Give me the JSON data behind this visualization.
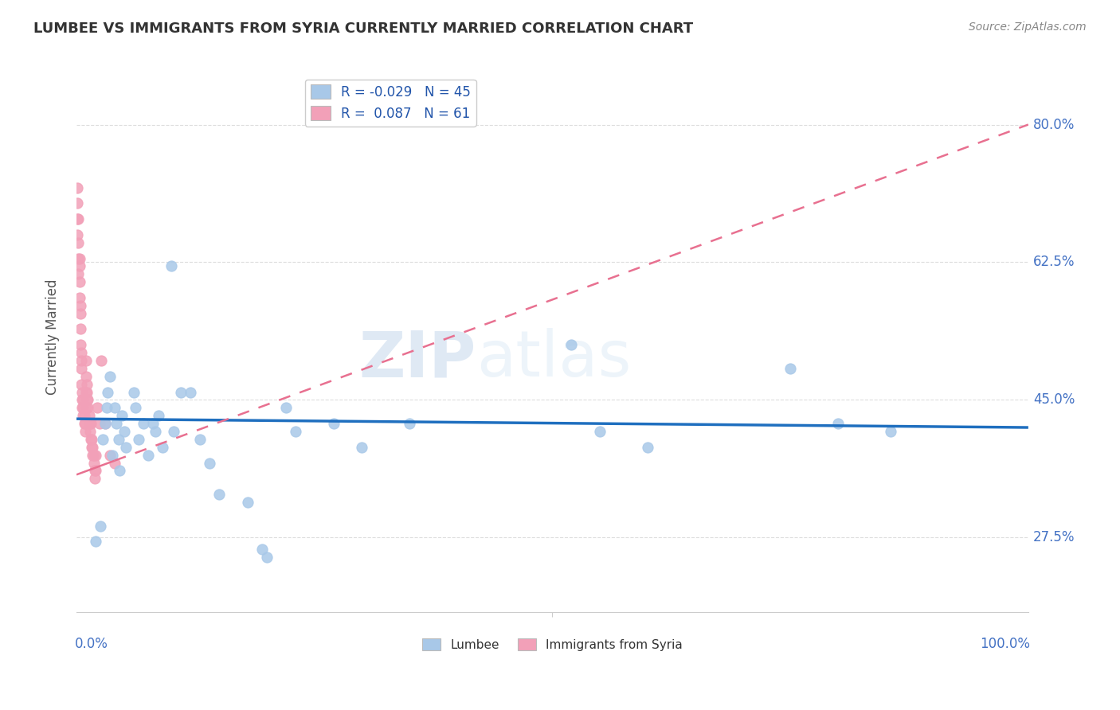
{
  "title": "LUMBEE VS IMMIGRANTS FROM SYRIA CURRENTLY MARRIED CORRELATION CHART",
  "source": "Source: ZipAtlas.com",
  "ylabel": "Currently Married",
  "legend_label1": "Lumbee",
  "legend_label2": "Immigrants from Syria",
  "r1": -0.029,
  "n1": 45,
  "r2": 0.087,
  "n2": 61,
  "yticks": [
    0.275,
    0.45,
    0.625,
    0.8
  ],
  "ytick_labels": [
    "27.5%",
    "45.0%",
    "62.5%",
    "80.0%"
  ],
  "color_blue": "#a8c8e8",
  "color_pink": "#f2a0b8",
  "line_blue": "#1f6fbf",
  "line_pink": "#e87090",
  "watermark_zip": "ZIP",
  "watermark_atlas": "atlas",
  "xmin": 0.0,
  "xmax": 1.0,
  "ymin": 0.18,
  "ymax": 0.88,
  "lumbee_x": [
    0.02,
    0.025,
    0.028,
    0.03,
    0.032,
    0.033,
    0.035,
    0.038,
    0.04,
    0.042,
    0.044,
    0.045,
    0.048,
    0.05,
    0.052,
    0.06,
    0.062,
    0.065,
    0.07,
    0.075,
    0.08,
    0.083,
    0.086,
    0.09,
    0.1,
    0.102,
    0.11,
    0.12,
    0.13,
    0.14,
    0.15,
    0.18,
    0.195,
    0.2,
    0.22,
    0.23,
    0.27,
    0.3,
    0.35,
    0.52,
    0.55,
    0.6,
    0.75,
    0.8,
    0.855
  ],
  "lumbee_y": [
    0.27,
    0.29,
    0.4,
    0.42,
    0.44,
    0.46,
    0.48,
    0.38,
    0.44,
    0.42,
    0.4,
    0.36,
    0.43,
    0.41,
    0.39,
    0.46,
    0.44,
    0.4,
    0.42,
    0.38,
    0.42,
    0.41,
    0.43,
    0.39,
    0.62,
    0.41,
    0.46,
    0.46,
    0.4,
    0.37,
    0.33,
    0.32,
    0.26,
    0.25,
    0.44,
    0.41,
    0.42,
    0.39,
    0.42,
    0.52,
    0.41,
    0.39,
    0.49,
    0.42,
    0.41
  ],
  "syria_x": [
    0.001,
    0.001,
    0.001,
    0.001,
    0.002,
    0.002,
    0.002,
    0.002,
    0.003,
    0.003,
    0.003,
    0.003,
    0.004,
    0.004,
    0.004,
    0.004,
    0.005,
    0.005,
    0.005,
    0.005,
    0.006,
    0.006,
    0.006,
    0.007,
    0.007,
    0.007,
    0.008,
    0.008,
    0.009,
    0.009,
    0.01,
    0.01,
    0.01,
    0.01,
    0.011,
    0.011,
    0.011,
    0.012,
    0.012,
    0.013,
    0.013,
    0.014,
    0.014,
    0.015,
    0.015,
    0.016,
    0.016,
    0.017,
    0.017,
    0.018,
    0.018,
    0.019,
    0.019,
    0.02,
    0.02,
    0.022,
    0.024,
    0.026,
    0.03,
    0.035,
    0.04
  ],
  "syria_y": [
    0.72,
    0.7,
    0.68,
    0.66,
    0.68,
    0.65,
    0.63,
    0.61,
    0.63,
    0.62,
    0.6,
    0.58,
    0.57,
    0.56,
    0.54,
    0.52,
    0.51,
    0.5,
    0.49,
    0.47,
    0.46,
    0.45,
    0.44,
    0.45,
    0.44,
    0.43,
    0.43,
    0.42,
    0.42,
    0.41,
    0.5,
    0.48,
    0.46,
    0.44,
    0.47,
    0.46,
    0.45,
    0.45,
    0.44,
    0.43,
    0.42,
    0.42,
    0.41,
    0.42,
    0.4,
    0.4,
    0.39,
    0.39,
    0.38,
    0.38,
    0.37,
    0.36,
    0.35,
    0.38,
    0.36,
    0.44,
    0.42,
    0.5,
    0.42,
    0.38,
    0.37
  ],
  "blue_line_x0": 0.0,
  "blue_line_x1": 1.0,
  "blue_line_y0": 0.426,
  "blue_line_y1": 0.415,
  "pink_line_x0": 0.0,
  "pink_line_x1": 1.0,
  "pink_line_y0": 0.355,
  "pink_line_y1": 0.8
}
